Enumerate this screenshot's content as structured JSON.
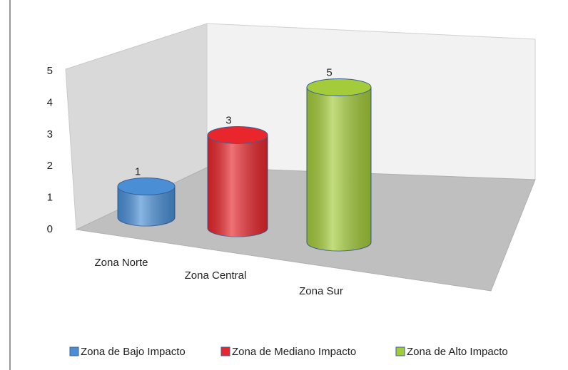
{
  "chart_data": {
    "type": "bar3d",
    "categories": [
      "Zona Norte",
      "Zona Central",
      "Zona Sur"
    ],
    "series": [
      {
        "name": "Zona de Bajo Impacto",
        "color": "#4a8fd6",
        "values": [
          1,
          null,
          null
        ]
      },
      {
        "name": "Zona de Mediano Impacto",
        "color": "#e8262b",
        "values": [
          null,
          3,
          null
        ]
      },
      {
        "name": "Zona de Alto Impacto",
        "color": "#a4cc3a",
        "values": [
          null,
          null,
          5
        ]
      }
    ],
    "ylim": [
      0,
      5
    ],
    "yticks": [
      0,
      1,
      2,
      3,
      4,
      5
    ],
    "legend": "bottom"
  }
}
